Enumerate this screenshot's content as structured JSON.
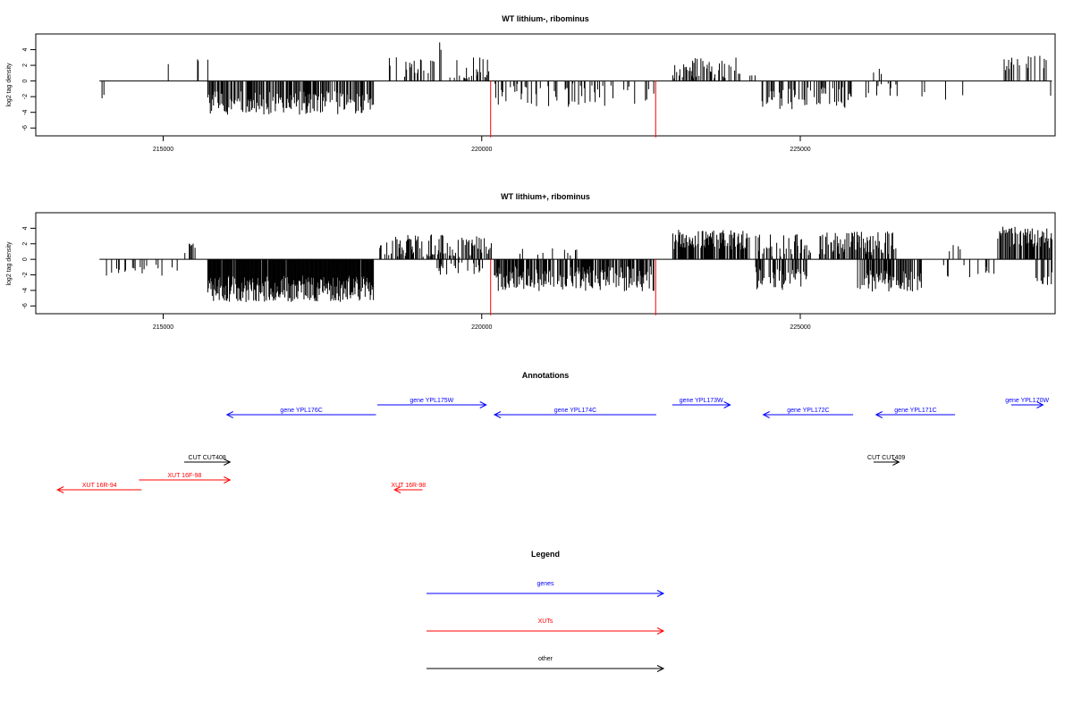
{
  "colors": {
    "gene": "#0000ff",
    "xut": "#ff0000",
    "other": "#000000",
    "marker": "#ff0000",
    "bars": "#000000"
  },
  "chart_data": [
    {
      "type": "bar",
      "title": "WT lithium-, ribominus",
      "ylabel": "log2 tag density",
      "xlim": [
        213000,
        229000
      ],
      "ylim": [
        -7,
        6
      ],
      "xticks": [
        215000,
        220000,
        225000
      ],
      "xtick_labels": [
        "215000",
        "220000",
        "225000"
      ],
      "yticks": [
        -6,
        -4,
        -2,
        0,
        2,
        4
      ],
      "ytick_labels": [
        "-6",
        "-4",
        "-2",
        "0",
        "2",
        "4"
      ],
      "baseline_range": [
        214000,
        228950
      ],
      "markers": [
        {
          "x": 220140,
          "y": -7.2
        },
        {
          "x": 222730,
          "y": -7.2
        }
      ],
      "segments": [
        {
          "x0": 214000,
          "x1": 214150,
          "density": 0.15,
          "mean": -2.0,
          "amp": 0.8,
          "seed": 1
        },
        {
          "x0": 214600,
          "x1": 214700,
          "density": 0.1,
          "mean": -2.0,
          "amp": 0.5,
          "seed": 2
        },
        {
          "x0": 215000,
          "x1": 215100,
          "density": 0.1,
          "mean": 2.0,
          "amp": 0.3,
          "seed": 3
        },
        {
          "x0": 215500,
          "x1": 215700,
          "density": 0.1,
          "mean": 2.7,
          "amp": 0.3,
          "seed": 4
        },
        {
          "x0": 215700,
          "x1": 218300,
          "density": 0.55,
          "mean": -2.8,
          "amp": 1.5,
          "seed": 5
        },
        {
          "x0": 218500,
          "x1": 219300,
          "density": 0.2,
          "mean": 1.8,
          "amp": 1.3,
          "seed": 6
        },
        {
          "x0": 219300,
          "x1": 219450,
          "density": 0.1,
          "mean": 4.5,
          "amp": 0.6,
          "seed": 7
        },
        {
          "x0": 219500,
          "x1": 220150,
          "density": 0.25,
          "mean": 0.5,
          "amp": 2.5,
          "seed": 8
        },
        {
          "x0": 220200,
          "x1": 222700,
          "density": 0.2,
          "mean": -1.8,
          "amp": 1.5,
          "seed": 9
        },
        {
          "x0": 223000,
          "x1": 224000,
          "density": 0.3,
          "mean": 1.6,
          "amp": 1.4,
          "seed": 10
        },
        {
          "x0": 224000,
          "x1": 224300,
          "density": 0.1,
          "mean": 0.8,
          "amp": 0.3,
          "seed": 11
        },
        {
          "x0": 224400,
          "x1": 225800,
          "density": 0.35,
          "mean": -2.2,
          "amp": 1.4,
          "seed": 12
        },
        {
          "x0": 226000,
          "x1": 226600,
          "density": 0.15,
          "mean": -1.2,
          "amp": 1.0,
          "seed": 13
        },
        {
          "x0": 226100,
          "x1": 226300,
          "density": 0.1,
          "mean": 1.2,
          "amp": 0.5,
          "seed": 14
        },
        {
          "x0": 226800,
          "x1": 227600,
          "density": 0.05,
          "mean": -1.5,
          "amp": 1.0,
          "seed": 15
        },
        {
          "x0": 228200,
          "x1": 228950,
          "density": 0.3,
          "mean": 2.3,
          "amp": 1.0,
          "seed": 16
        },
        {
          "x0": 228800,
          "x1": 228950,
          "density": 0.1,
          "mean": -2.5,
          "amp": 0.8,
          "seed": 17
        }
      ]
    },
    {
      "type": "bar",
      "title": "WT lithium+, ribominus",
      "ylabel": "log2 tag density",
      "xlim": [
        213000,
        229000
      ],
      "ylim": [
        -7,
        6
      ],
      "xticks": [
        215000,
        220000,
        225000
      ],
      "xtick_labels": [
        "215000",
        "220000",
        "225000"
      ],
      "yticks": [
        -6,
        -4,
        -2,
        0,
        2,
        4
      ],
      "ytick_labels": [
        "-6",
        "-4",
        "-2",
        "0",
        "2",
        "4"
      ],
      "baseline_range": [
        214000,
        228950
      ],
      "markers": [
        {
          "x": 220140,
          "y": -7.2
        },
        {
          "x": 222730,
          "y": -7.2
        }
      ],
      "segments": [
        {
          "x0": 214000,
          "x1": 215300,
          "density": 0.15,
          "mean": -1.5,
          "amp": 0.8,
          "seed": 21
        },
        {
          "x0": 215300,
          "x1": 215500,
          "density": 0.2,
          "mean": 1.5,
          "amp": 0.8,
          "seed": 22
        },
        {
          "x0": 215700,
          "x1": 218300,
          "density": 0.95,
          "mean": -3.8,
          "amp": 1.7,
          "seed": 23
        },
        {
          "x0": 218400,
          "x1": 220150,
          "density": 0.45,
          "mean": 1.6,
          "amp": 1.6,
          "seed": 24
        },
        {
          "x0": 219300,
          "x1": 220100,
          "density": 0.25,
          "mean": -1.2,
          "amp": 0.8,
          "seed": 25
        },
        {
          "x0": 220200,
          "x1": 222700,
          "density": 0.7,
          "mean": -2.5,
          "amp": 1.6,
          "seed": 26
        },
        {
          "x0": 220500,
          "x1": 221500,
          "density": 0.1,
          "mean": 1.0,
          "amp": 0.5,
          "seed": 27
        },
        {
          "x0": 223000,
          "x1": 224200,
          "density": 0.75,
          "mean": 2.5,
          "amp": 1.3,
          "seed": 28
        },
        {
          "x0": 224300,
          "x1": 225200,
          "density": 0.4,
          "mean": 1.8,
          "amp": 1.5,
          "seed": 29
        },
        {
          "x0": 224300,
          "x1": 225100,
          "density": 0.5,
          "mean": -2.5,
          "amp": 1.5,
          "seed": 30
        },
        {
          "x0": 225300,
          "x1": 226500,
          "density": 0.55,
          "mean": 2.0,
          "amp": 1.6,
          "seed": 31
        },
        {
          "x0": 225900,
          "x1": 226900,
          "density": 0.6,
          "mean": -2.8,
          "amp": 1.4,
          "seed": 32
        },
        {
          "x0": 226900,
          "x1": 228100,
          "density": 0.1,
          "mean": -1.5,
          "amp": 1.0,
          "seed": 33
        },
        {
          "x0": 227300,
          "x1": 227600,
          "density": 0.05,
          "mean": 1.5,
          "amp": 0.5,
          "seed": 34
        },
        {
          "x0": 228100,
          "x1": 228950,
          "density": 0.75,
          "mean": 2.8,
          "amp": 1.4,
          "seed": 35
        },
        {
          "x0": 228700,
          "x1": 228950,
          "density": 0.3,
          "mean": -2.5,
          "amp": 1.2,
          "seed": 36
        }
      ]
    }
  ],
  "annotations": {
    "title": "Annotations",
    "features": [
      {
        "label": "gene YPL176C",
        "type": "gene",
        "start": 216000,
        "end": 218340,
        "strand": "-",
        "row": 1
      },
      {
        "label": "gene YPL175W",
        "type": "gene",
        "start": 218360,
        "end": 220070,
        "strand": "+",
        "row": 0
      },
      {
        "label": "gene YPL174C",
        "type": "gene",
        "start": 220200,
        "end": 222740,
        "strand": "-",
        "row": 1
      },
      {
        "label": "gene YPL173W",
        "type": "gene",
        "start": 222990,
        "end": 223900,
        "strand": "+",
        "row": 0
      },
      {
        "label": "gene YPL172C",
        "type": "gene",
        "start": 224420,
        "end": 225830,
        "strand": "-",
        "row": 1
      },
      {
        "label": "gene YPL171C",
        "type": "gene",
        "start": 226190,
        "end": 227430,
        "strand": "-",
        "row": 1
      },
      {
        "label": "gene YPL170W",
        "type": "gene",
        "start": 228310,
        "end": 228810,
        "strand": "+",
        "row": 0
      },
      {
        "label": "CUT CUT408",
        "type": "other",
        "start": 215330,
        "end": 216050,
        "strand": "+",
        "row": 3
      },
      {
        "label": "CUT CUT409",
        "type": "other",
        "start": 226150,
        "end": 226550,
        "strand": "+",
        "row": 3
      },
      {
        "label": "XUT 16F-98",
        "type": "xut",
        "start": 214620,
        "end": 216050,
        "strand": "+",
        "row": 4
      },
      {
        "label": "XUT 16R-94",
        "type": "xut",
        "start": 213340,
        "end": 214660,
        "strand": "-",
        "row": 5
      },
      {
        "label": "XUT 16R-98",
        "type": "xut",
        "start": 218630,
        "end": 219070,
        "strand": "-",
        "row": 5
      }
    ]
  },
  "legend": {
    "title": "Legend",
    "items": [
      {
        "label": "genes",
        "type": "gene"
      },
      {
        "label": "XUTs",
        "type": "xut"
      },
      {
        "label": "other",
        "type": "other"
      }
    ]
  }
}
